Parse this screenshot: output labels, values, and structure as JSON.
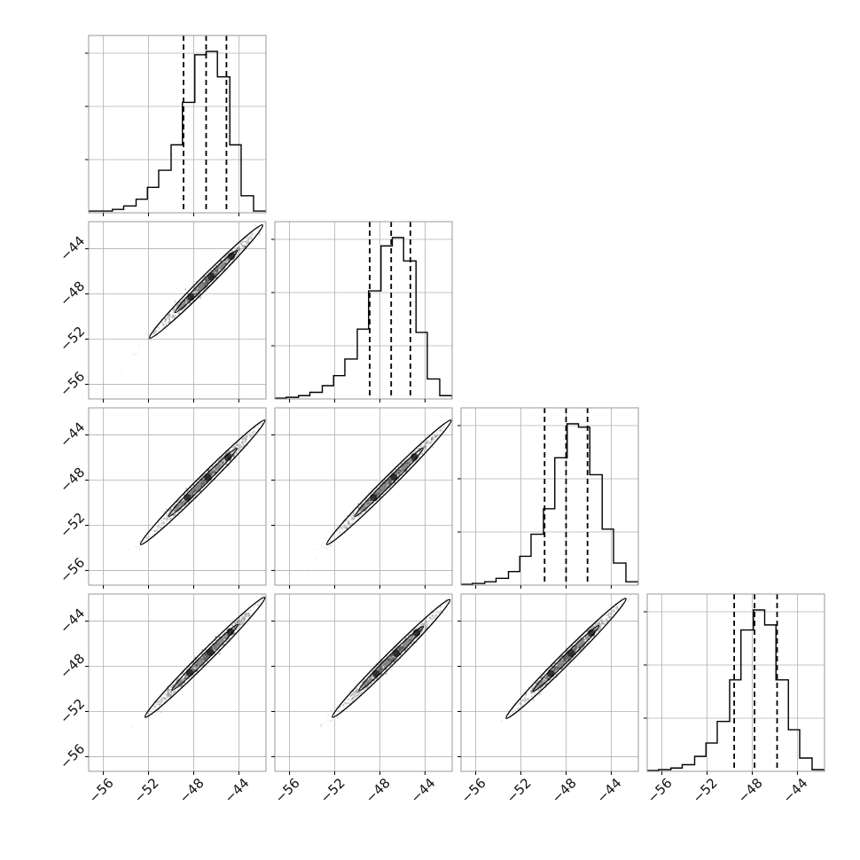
{
  "chart_data": {
    "type": "corner",
    "n_params": 4,
    "axis_range": [
      -57.3,
      -41.6
    ],
    "ticks": [
      -56,
      -52,
      -48,
      -44
    ],
    "tick_labels": [
      "−56",
      "−52",
      "−48",
      "−44"
    ],
    "grid": true,
    "colors": {
      "line": "#000000",
      "grid": "#b0b0b0",
      "frame": "#999999",
      "density": "#555555"
    },
    "histograms": [
      {
        "param": 1,
        "quantiles": [
          -48.9,
          -46.9,
          -45.1
        ],
        "bin_edges": [
          -57.3,
          -56.3,
          -55.2,
          -54.2,
          -53.1,
          -52.1,
          -51.1,
          -50.0,
          -49.0,
          -47.9,
          -46.9,
          -45.9,
          -44.8,
          -43.8,
          -42.7,
          -41.6
        ],
        "counts": [
          0.01,
          0.01,
          0.02,
          0.04,
          0.08,
          0.15,
          0.25,
          0.4,
          0.65,
          0.93,
          0.95,
          0.8,
          0.4,
          0.1,
          0.01
        ]
      },
      {
        "param": 2,
        "quantiles": [
          -48.9,
          -47.0,
          -45.3
        ],
        "bin_edges": [
          -57.3,
          -56.3,
          -55.2,
          -54.2,
          -53.1,
          -52.1,
          -51.1,
          -50.0,
          -49.0,
          -47.9,
          -46.9,
          -45.9,
          -44.8,
          -43.8,
          -42.7,
          -41.6
        ],
        "counts": [
          0.005,
          0.01,
          0.02,
          0.04,
          0.08,
          0.14,
          0.24,
          0.42,
          0.65,
          0.92,
          0.97,
          0.83,
          0.4,
          0.12,
          0.02
        ]
      },
      {
        "param": 3,
        "quantiles": [
          -49.9,
          -48.0,
          -46.1
        ],
        "bin_edges": [
          -57.3,
          -56.3,
          -55.2,
          -54.2,
          -53.1,
          -52.1,
          -51.1,
          -50.0,
          -49.0,
          -47.9,
          -46.9,
          -45.9,
          -44.8,
          -43.8,
          -42.7,
          -41.6
        ],
        "counts": [
          0.005,
          0.01,
          0.02,
          0.04,
          0.08,
          0.17,
          0.3,
          0.45,
          0.75,
          0.95,
          0.93,
          0.65,
          0.33,
          0.13,
          0.02
        ]
      },
      {
        "param": 4,
        "quantiles": [
          -49.6,
          -47.8,
          -45.8
        ],
        "bin_edges": [
          -57.3,
          -56.3,
          -55.2,
          -54.2,
          -53.1,
          -52.1,
          -51.1,
          -50.0,
          -49.0,
          -47.9,
          -46.9,
          -45.9,
          -44.8,
          -43.8,
          -42.7,
          -41.6
        ],
        "counts": [
          0.005,
          0.01,
          0.02,
          0.04,
          0.09,
          0.17,
          0.3,
          0.55,
          0.85,
          0.97,
          0.88,
          0.55,
          0.25,
          0.08,
          0.01
        ]
      }
    ],
    "pair_panels": [
      {
        "row": 2,
        "col": 1,
        "center": [
          -46.9,
          -46.9
        ],
        "contour_half_length": 5.0
      },
      {
        "row": 3,
        "col": 1,
        "center": [
          -47.2,
          -48.2
        ],
        "contour_half_length": 5.5
      },
      {
        "row": 3,
        "col": 2,
        "center": [
          -47.2,
          -48.2
        ],
        "contour_half_length": 5.5
      },
      {
        "row": 4,
        "col": 1,
        "center": [
          -47.0,
          -47.2
        ],
        "contour_half_length": 5.3
      },
      {
        "row": 4,
        "col": 2,
        "center": [
          -47.0,
          -47.3
        ],
        "contour_half_length": 5.2
      },
      {
        "row": 4,
        "col": 3,
        "center": [
          -48.0,
          -47.3
        ],
        "contour_half_length": 5.3
      }
    ]
  }
}
